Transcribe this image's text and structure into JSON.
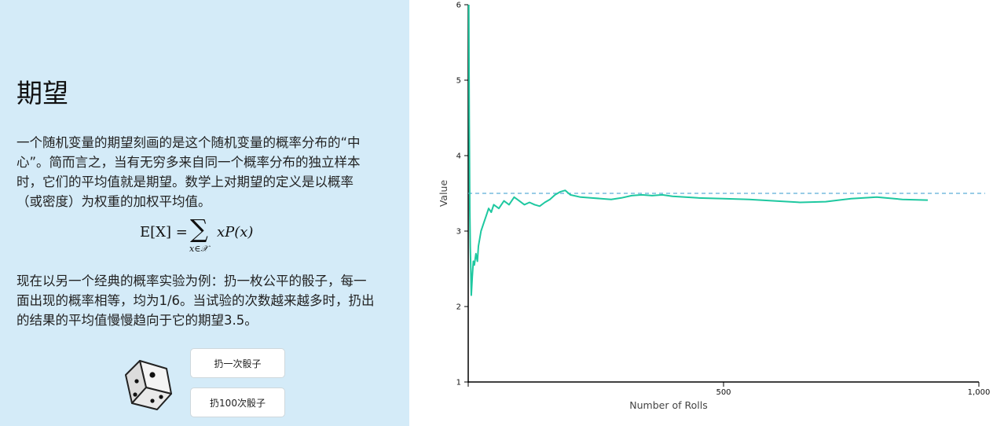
{
  "panel": {
    "title": "期望",
    "paragraph1": "一个随机变量的期望刻画的是这个随机变量的概率分布的“中心”。简而言之，当有无穷多来自同一个概率分布的独立样本时，它们的平均值就是期望。数学上对期望的定义是以概率（或密度）为权重的加权平均值。",
    "formula": {
      "lhs": "E[X] =",
      "sigma": "∑",
      "subscript": "x∈𝒳",
      "rhs": "xP(x)"
    },
    "paragraph2": "现在以另一个经典的概率实验为例：扔一枚公平的骰子，每一面出现的概率相等，均为1/6。当试验的次数越来越多时，扔出的结果的平均值慢慢趋向于它的期望3.5。",
    "roll_once_label": "扔一次骰子",
    "roll_100_label": "扔100次骰子"
  },
  "colors": {
    "panel_bg": "#d4ebf8",
    "series": "#1ec8a0",
    "expected_line": "#5aaed7"
  },
  "chart_data": {
    "type": "line",
    "xlabel": "Number of Rolls",
    "ylabel": "Value",
    "xlim": [
      0,
      1000
    ],
    "ylim": [
      1,
      6
    ],
    "xticks": [
      500,
      1000
    ],
    "xtick_labels": [
      "500",
      "1,000"
    ],
    "yticks": [
      1,
      2,
      3,
      4,
      5,
      6
    ],
    "expected_value": 3.5,
    "series": [
      {
        "x": [
          1,
          2,
          3,
          4,
          5,
          6,
          8,
          10,
          12,
          15,
          18,
          20,
          25,
          30,
          35,
          40,
          45,
          50,
          60,
          70,
          80,
          90,
          100,
          110,
          120,
          130,
          140,
          150,
          160,
          170,
          180,
          190,
          200,
          220,
          240,
          260,
          280,
          300,
          320,
          340,
          360,
          380,
          400,
          450,
          500,
          550,
          600,
          650,
          700,
          750,
          800,
          850,
          900
        ],
        "y": [
          6.0,
          4.5,
          3.3,
          2.8,
          2.5,
          2.15,
          2.4,
          2.6,
          2.55,
          2.7,
          2.6,
          2.8,
          3.0,
          3.1,
          3.2,
          3.3,
          3.25,
          3.35,
          3.3,
          3.4,
          3.35,
          3.45,
          3.4,
          3.35,
          3.38,
          3.35,
          3.33,
          3.38,
          3.42,
          3.48,
          3.52,
          3.54,
          3.48,
          3.45,
          3.44,
          3.43,
          3.42,
          3.44,
          3.47,
          3.48,
          3.47,
          3.48,
          3.46,
          3.44,
          3.43,
          3.42,
          3.4,
          3.38,
          3.39,
          3.43,
          3.45,
          3.42,
          3.41
        ]
      }
    ]
  }
}
